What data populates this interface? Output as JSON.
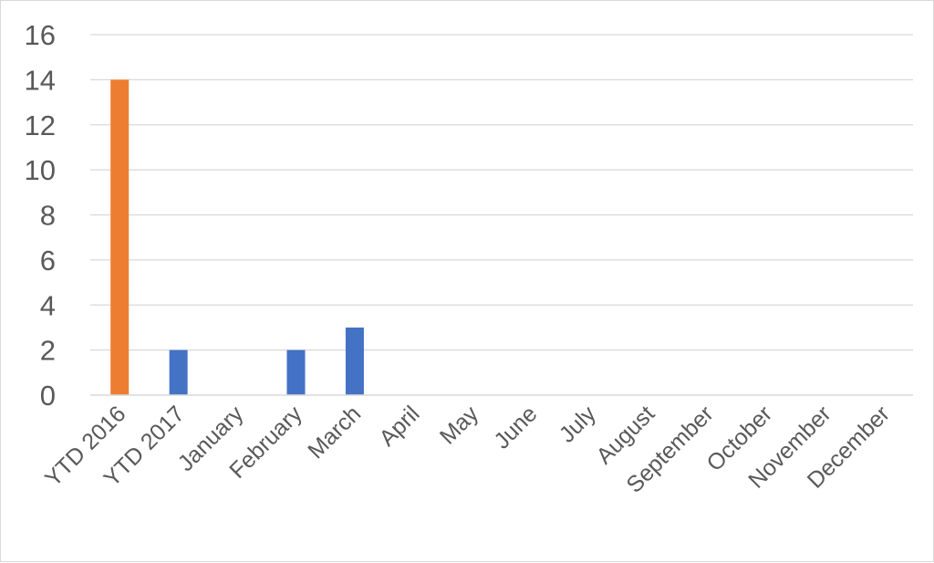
{
  "chart_data": {
    "type": "bar",
    "title": "",
    "xlabel": "",
    "ylabel": "",
    "ylim": [
      0,
      16
    ],
    "y_ticks": [
      0,
      2,
      4,
      6,
      8,
      10,
      12,
      14,
      16
    ],
    "grid": true,
    "legend": "none",
    "categories": [
      "YTD 2016",
      "YTD 2017",
      "January",
      "February",
      "March",
      "April",
      "May",
      "June",
      "July",
      "August",
      "September",
      "October",
      "November",
      "December"
    ],
    "values": [
      14,
      2,
      0,
      2,
      3,
      0,
      0,
      0,
      0,
      0,
      0,
      0,
      0,
      0
    ],
    "bar_colors": [
      "#ed7d31",
      "#4472c4",
      "#4472c4",
      "#4472c4",
      "#4472c4",
      "#4472c4",
      "#4472c4",
      "#4472c4",
      "#4472c4",
      "#4472c4",
      "#4472c4",
      "#4472c4",
      "#4472c4",
      "#4472c4"
    ],
    "colors": {
      "grid": "#d9d9d9",
      "axis": "#d9d9d9",
      "text": "#595959"
    }
  }
}
